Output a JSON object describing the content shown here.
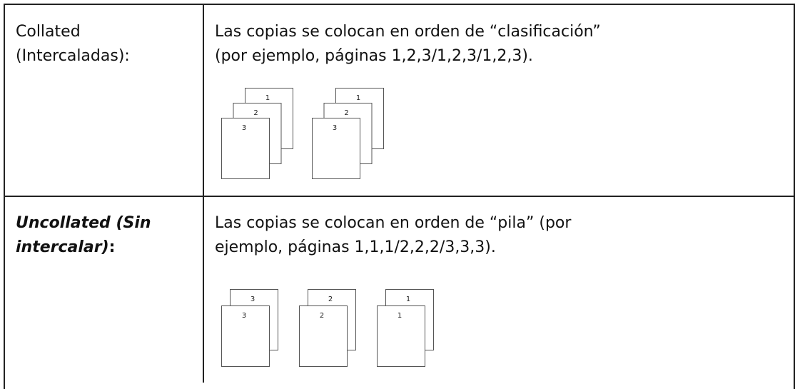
{
  "table": {
    "rows": [
      {
        "label": "Collated (Intercaladas):",
        "description": "Las copias se colocan en orden de “clasificación” (por ejemplo, páginas 1,2,3/1,2,3/1,2,3).",
        "stacks": [
          [
            "1",
            "2",
            "3"
          ],
          [
            "1",
            "2",
            "3"
          ]
        ]
      },
      {
        "label_emphasis": "Uncollated (Sin intercalar)",
        "label_suffix": ":",
        "description": "Las copias se colocan en orden de “pila” (por ejemplo, páginas 1,1,1/2,2,2/3,3,3).",
        "stacks": [
          [
            "3",
            "3"
          ],
          [
            "2",
            "2"
          ],
          [
            "1",
            "1"
          ]
        ]
      }
    ]
  }
}
